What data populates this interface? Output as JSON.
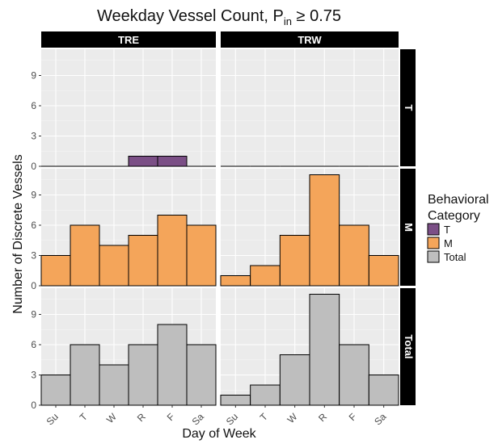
{
  "chart_data": {
    "type": "bar",
    "title_main": "Weekday Vessel Count, P",
    "title_sub": "in",
    "title_tail": " ≥ 0.75",
    "xlabel": "Day of Week",
    "ylabel": "Number of Discrete Vessels",
    "categories": [
      "Su",
      "T",
      "W",
      "R",
      "F",
      "Sa"
    ],
    "yticks": [
      0,
      3,
      6,
      9
    ],
    "ylim": [
      0,
      11.6
    ],
    "columns": [
      "TRE",
      "TRW"
    ],
    "rows": [
      "T",
      "M",
      "Total"
    ],
    "grid": true,
    "legend": {
      "title_lines": [
        "Behavioral",
        "Category"
      ],
      "position": "right",
      "items": [
        {
          "label": "T",
          "color": "#7b4f86"
        },
        {
          "label": "M",
          "color": "#f4a55a"
        },
        {
          "label": "Total",
          "color": "#bebebe"
        }
      ]
    },
    "panels": [
      {
        "column": "TRE",
        "row": "T",
        "color": "#7b4f86",
        "values": [
          0,
          0,
          0,
          1,
          1,
          0
        ]
      },
      {
        "column": "TRW",
        "row": "T",
        "color": "#7b4f86",
        "values": [
          0,
          0,
          0,
          0,
          0,
          0
        ]
      },
      {
        "column": "TRE",
        "row": "M",
        "color": "#f4a55a",
        "values": [
          3,
          6,
          4,
          5,
          7,
          6
        ]
      },
      {
        "column": "TRW",
        "row": "M",
        "color": "#f4a55a",
        "values": [
          1,
          2,
          5,
          11,
          6,
          3
        ]
      },
      {
        "column": "TRE",
        "row": "Total",
        "color": "#bebebe",
        "values": [
          3,
          6,
          4,
          6,
          8,
          6
        ]
      },
      {
        "column": "TRW",
        "row": "Total",
        "color": "#bebebe",
        "values": [
          1,
          2,
          5,
          11,
          6,
          3
        ]
      }
    ]
  }
}
